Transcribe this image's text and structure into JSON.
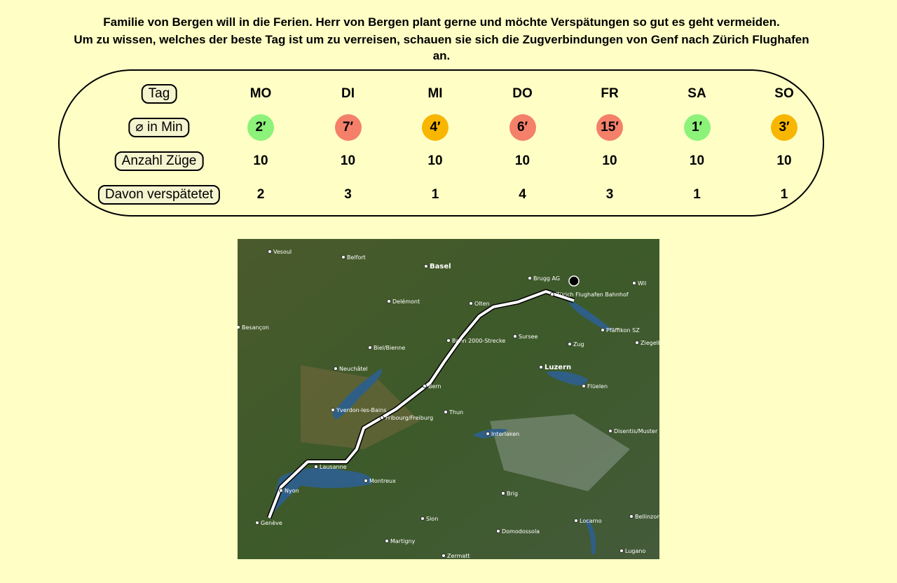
{
  "intro": {
    "paragraphs": [
      "Familie von Bergen will in die Ferien. Herr von Bergen plant gerne und möchte Verspätungen so gut es geht vermeiden.",
      "Um zu wissen, welches der beste Tag ist um zu verreisen, schauen sie sich die Zugverbindungen von Genf nach Zürich Flughafen an."
    ]
  },
  "table": {
    "row_labels": [
      "Tag",
      "⌀   in Min",
      "Anzahl Züge",
      "Davon verspätetet"
    ],
    "days": [
      "MO",
      "DI",
      "MI",
      "DO",
      "FR",
      "SA",
      "SO"
    ],
    "delays": [
      "2′",
      "7′",
      "4′",
      "6′",
      "15′",
      "1′",
      "3′"
    ],
    "delay_colors": [
      "#8cf27a",
      "#f4806a",
      "#f8b600",
      "#f4806a",
      "#f4806a",
      "#8cf27a",
      "#f8b600"
    ],
    "trains": [
      10,
      10,
      10,
      10,
      10,
      10,
      10
    ],
    "delayed": [
      2,
      3,
      1,
      4,
      3,
      1,
      1
    ]
  },
  "map": {
    "labels": [
      "Vesoul",
      "Belfort",
      "Basel",
      "Brugg AG",
      "Zürich Flughafen Bahnhof",
      "Wil",
      "Delémont",
      "Olten",
      "Besançon",
      "Bahn 2000-Strecke",
      "Sursee",
      "Zug",
      "Pfäffikon SZ",
      "Ziegelbrücke",
      "Biel/Bienne",
      "Neuchâtel",
      "Luzern",
      "Bern",
      "Flüelen",
      "Yverdon-les-Bains",
      "Fribourg/Freiburg",
      "Thun",
      "Interlaken",
      "Disentis/Muster",
      "Lausanne",
      "Montreux",
      "Nyon",
      "Brig",
      "Sion",
      "Locarno",
      "Bellinzona",
      "Genève",
      "Martigny",
      "Domodossola",
      "Zermatt",
      "Lugano"
    ]
  }
}
